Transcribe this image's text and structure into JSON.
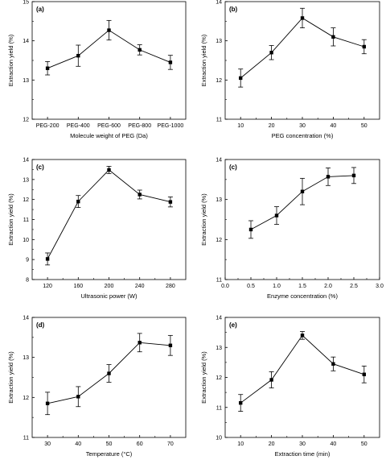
{
  "chart_data": [
    {
      "type": "line",
      "panel_label": "(a)",
      "xlabel": "Molecule weight of PEG (Da)",
      "ylabel": "Extraction yield (%)",
      "categories": [
        "PEG-200",
        "PEG-400",
        "PEG-600",
        "PEG-800",
        "PEG-1000"
      ],
      "x_ticks": [
        "PEG-200",
        "PEG-400",
        "PEG-600",
        "PEG-800",
        "PEG-1000"
      ],
      "values": [
        13.3,
        13.62,
        14.27,
        13.77,
        13.45
      ],
      "errors": [
        0.17,
        0.27,
        0.25,
        0.13,
        0.18
      ],
      "ylim": [
        12,
        15
      ],
      "y_ticks": [
        "12",
        "13",
        "14",
        "15"
      ],
      "grid": false
    },
    {
      "type": "line",
      "panel_label": "(b)",
      "xlabel": "PEG concentration (%)",
      "ylabel": "Extraction yield (%)",
      "x": [
        10,
        20,
        30,
        40,
        50
      ],
      "values": [
        12.05,
        12.7,
        13.58,
        13.1,
        12.85
      ],
      "errors": [
        0.23,
        0.18,
        0.25,
        0.23,
        0.18
      ],
      "xlim": [
        5,
        55
      ],
      "ylim": [
        11,
        14
      ],
      "x_ticks": [
        "10",
        "20",
        "30",
        "40",
        "50"
      ],
      "y_ticks": [
        "11",
        "12",
        "13",
        "14"
      ],
      "grid": false
    },
    {
      "type": "line",
      "panel_label": "(c)",
      "xlabel": "Ultrasonic power (W)",
      "ylabel": "Extraction yield (%)",
      "x": [
        120,
        160,
        200,
        240,
        280
      ],
      "values": [
        9.03,
        11.9,
        13.48,
        12.25,
        11.88
      ],
      "errors": [
        0.3,
        0.3,
        0.18,
        0.22,
        0.25
      ],
      "xlim": [
        100,
        300
      ],
      "ylim": [
        8,
        14
      ],
      "x_ticks": [
        "120",
        "160",
        "200",
        "240",
        "280"
      ],
      "y_ticks": [
        "8",
        "9",
        "10",
        "11",
        "12",
        "13",
        "14"
      ],
      "grid": false
    },
    {
      "type": "line",
      "panel_label": "(c)",
      "xlabel": "Enzyme concentration (%)",
      "ylabel": "Extraction yield (%)",
      "x": [
        0.5,
        1.0,
        1.5,
        2.0,
        2.5
      ],
      "values": [
        12.25,
        12.6,
        13.2,
        13.57,
        13.6
      ],
      "errors": [
        0.22,
        0.22,
        0.33,
        0.22,
        0.2
      ],
      "xlim": [
        0.0,
        3.0
      ],
      "ylim": [
        11,
        14
      ],
      "x_ticks": [
        "0.0",
        "0.5",
        "1.0",
        "1.5",
        "2.0",
        "2.5",
        "3.0"
      ],
      "y_ticks": [
        "11",
        "12",
        "13",
        "14"
      ],
      "grid": false
    },
    {
      "type": "line",
      "panel_label": "(d)",
      "xlabel": "Temperature (°C)",
      "ylabel": "Extraction yield (%)",
      "x": [
        30,
        40,
        50,
        60,
        70
      ],
      "values": [
        11.85,
        12.02,
        12.6,
        13.37,
        13.3
      ],
      "errors": [
        0.28,
        0.25,
        0.22,
        0.23,
        0.25
      ],
      "xlim": [
        25,
        75
      ],
      "ylim": [
        11,
        14
      ],
      "x_ticks": [
        "30",
        "40",
        "50",
        "60",
        "70"
      ],
      "y_ticks": [
        "11",
        "12",
        "13",
        "14"
      ],
      "grid": false
    },
    {
      "type": "line",
      "panel_label": "(e)",
      "xlabel": "Extraction time (min)",
      "ylabel": "Extraction yield (%)",
      "x": [
        10,
        20,
        30,
        40,
        50
      ],
      "values": [
        11.15,
        11.92,
        13.4,
        12.45,
        12.1
      ],
      "errors": [
        0.28,
        0.27,
        0.13,
        0.23,
        0.28
      ],
      "xlim": [
        5,
        55
      ],
      "ylim": [
        10,
        14
      ],
      "x_ticks": [
        "10",
        "20",
        "30",
        "40",
        "50"
      ],
      "y_ticks": [
        "10",
        "11",
        "12",
        "13",
        "14"
      ],
      "grid": false
    }
  ]
}
